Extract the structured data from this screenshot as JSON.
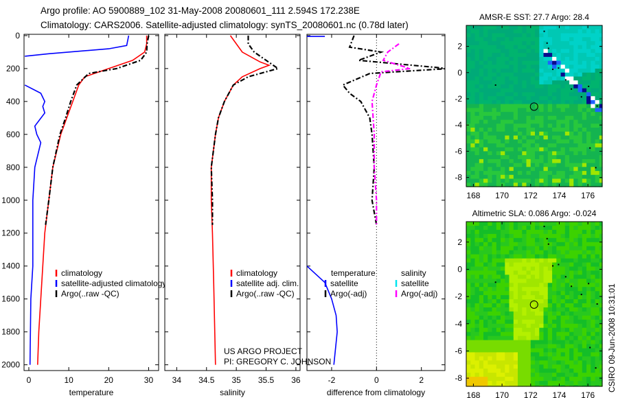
{
  "header": {
    "line1": "Argo profile: AO 5900889_102 31-May-2008 20080601_111 2.594S 172.238E",
    "line2": "Climatology: CARS2006. Satellite-adjusted climatology: synTS_20080601.nc (0.78d later)"
  },
  "credits": {
    "line1": "US ARGO PROJECT",
    "line2": "PI: GREGORY C. JOHNSON"
  },
  "stamp": "CSIRO 09-Jun-2008 10:31:01",
  "colors": {
    "climatology": "#ff0000",
    "satellite": "#0000ff",
    "argo": "#000000",
    "sal_satellite": "#00e5ee",
    "sal_argo": "#ff00ff"
  },
  "chart_data": [
    {
      "type": "line",
      "id": "temp",
      "xlabel": "temperature",
      "ylabel": "",
      "xlim": [
        -1.2,
        32.5
      ],
      "ylim": [
        2035,
        -8
      ],
      "xticks": [
        0,
        10,
        20,
        30
      ],
      "yticks": [
        0,
        200,
        400,
        600,
        800,
        1000,
        1200,
        1400,
        1600,
        1800,
        2000
      ],
      "legend": [
        "climatology",
        "satellite-adjusted climatology",
        "Argo(..raw -QC)"
      ],
      "series": [
        {
          "name": "climatology",
          "color": "#ff0000",
          "dash": false,
          "x": [
            29.5,
            29.5,
            29,
            26,
            20,
            14,
            12.5,
            11,
            9.5,
            8,
            6,
            5,
            4,
            3.5,
            3,
            2.5,
            2.2
          ],
          "y": [
            0,
            50,
            100,
            150,
            200,
            250,
            300,
            400,
            500,
            600,
            800,
            1000,
            1200,
            1400,
            1600,
            1800,
            2000
          ]
        },
        {
          "name": "satellite-adjusted climatology",
          "color": "#0000ff",
          "dash": false,
          "x": [
            25,
            24.5,
            20,
            5,
            -1,
            null,
            -1,
            3,
            4,
            3.5,
            4,
            1.5,
            2,
            3,
            2.5,
            1.5,
            1,
            1,
            0.5,
            0.3
          ],
          "y": [
            0,
            60,
            80,
            110,
            125,
            null,
            300,
            350,
            400,
            430,
            470,
            550,
            600,
            650,
            700,
            800,
            1000,
            1400,
            1600,
            2000
          ]
        },
        {
          "name": "Argo(..raw -QC)",
          "color": "#000000",
          "dash": true,
          "x": [
            30,
            29.6,
            29.5,
            28,
            22,
            15,
            12,
            10.5,
            9.2,
            7.8,
            6,
            5,
            4.2
          ],
          "y": [
            0,
            50,
            100,
            150,
            200,
            230,
            300,
            400,
            500,
            600,
            800,
            1000,
            1150
          ]
        }
      ]
    },
    {
      "type": "line",
      "id": "sal",
      "xlabel": "salinity",
      "ylabel": "",
      "xlim": [
        33.8,
        36.07
      ],
      "ylim": [
        2035,
        -8
      ],
      "xticks": [
        34,
        34.5,
        35,
        35.5,
        36
      ],
      "yticks": [
        0,
        200,
        400,
        600,
        800,
        1000,
        1200,
        1400,
        1600,
        1800,
        2000
      ],
      "legend": [
        "climatology",
        "satellite adj. clim.",
        "Argo(..raw -QC)"
      ],
      "series": [
        {
          "name": "climatology",
          "color": "#ff0000",
          "dash": false,
          "x": [
            34.9,
            35.1,
            35.4,
            35.55,
            35.4,
            35.1,
            34.95,
            34.8,
            34.7,
            34.65,
            34.58,
            34.58,
            34.6,
            34.62,
            34.65
          ],
          "y": [
            0,
            100,
            160,
            180,
            200,
            250,
            300,
            400,
            500,
            600,
            800,
            1000,
            1200,
            1500,
            2000
          ]
        },
        {
          "name": "Argo(..raw -QC)",
          "color": "#000000",
          "dash": true,
          "x": [
            35.2,
            35.2,
            35.3,
            35.5,
            35.7,
            35.2,
            34.95,
            34.8,
            34.7,
            34.65,
            34.58,
            34.6,
            34.6
          ],
          "y": [
            0,
            50,
            100,
            150,
            200,
            250,
            300,
            400,
            500,
            600,
            800,
            1000,
            1150
          ]
        }
      ]
    },
    {
      "type": "line",
      "id": "diff",
      "xlabel": "difference from climatology",
      "ylabel": "",
      "xlim": [
        -3.1,
        3.05
      ],
      "ylim": [
        2035,
        -8
      ],
      "xticks": [
        -2,
        0,
        2
      ],
      "yticks": [
        0,
        200,
        400,
        600,
        800,
        1000,
        1200,
        1400,
        1600,
        1800,
        2000
      ],
      "legend_headers": [
        "temperature",
        "salinity"
      ],
      "legend": [
        "satellite",
        "Argo(-adj)",
        "satellite",
        "Argo(-adj)"
      ],
      "series": [
        {
          "name": "temperature satellite",
          "color": "#0000ff",
          "dash": false,
          "x": [
            -3.1,
            -2.3,
            null,
            -3.1,
            -2.3,
            -2,
            -1.8,
            -1.75,
            -1.9
          ],
          "y": [
            5,
            5,
            null,
            1400,
            1500,
            1600,
            1700,
            1800,
            2000
          ]
        },
        {
          "name": "temperature Argo(-adj)",
          "color": "#000000",
          "dash": true,
          "x": [
            -1,
            -1.2,
            0.2,
            -0.8,
            3.2,
            -0.3,
            -1.5,
            -1.2,
            -0.7,
            -0.3,
            -0.2,
            -0.1,
            -0.2,
            0
          ],
          "y": [
            0,
            70,
            100,
            150,
            200,
            230,
            300,
            350,
            400,
            500,
            600,
            800,
            1000,
            1150
          ]
        },
        {
          "name": "salinity Argo(-adj)",
          "color": "#ff00ff",
          "dash": true,
          "x": [
            1,
            0.5,
            0.3,
            1.5,
            0.2,
            0,
            -0.2,
            -0.1,
            -0.1,
            0,
            0
          ],
          "y": [
            50,
            100,
            150,
            200,
            220,
            300,
            400,
            600,
            800,
            1000,
            1150
          ]
        }
      ]
    },
    {
      "type": "heatmap",
      "id": "sst",
      "title": "AMSR-E SST: 27.7 Argo: 28.4",
      "xlim": [
        167.5,
        177.0
      ],
      "ylim": [
        -8.7,
        3.6
      ],
      "xticks": [
        168,
        170,
        172,
        174,
        176
      ],
      "yticks": [
        2,
        0,
        -2,
        -4,
        -6,
        -8
      ],
      "marker": {
        "lon": 172.238,
        "lat": -2.594
      }
    },
    {
      "type": "heatmap",
      "id": "sla",
      "title": "Altimetric SLA: 0.086 Argo: -0.024",
      "xlim": [
        167.5,
        177.0
      ],
      "ylim": [
        -8.6,
        3.5
      ],
      "xticks": [
        168,
        170,
        172,
        174,
        176
      ],
      "yticks": [
        2,
        0,
        -2,
        -4,
        -6,
        -8
      ],
      "marker": {
        "lon": 172.238,
        "lat": -2.594
      }
    }
  ]
}
